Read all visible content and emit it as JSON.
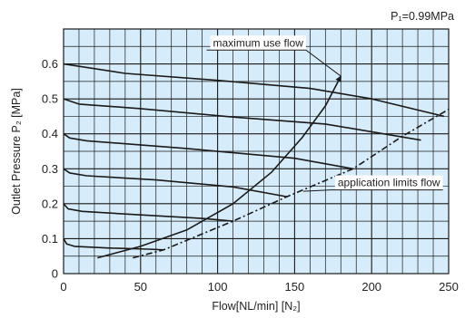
{
  "chart_data": {
    "type": "line",
    "pressure_label": "P₁=0.99MPa",
    "xlabel": "Flow[NL/min] [N₂]",
    "ylabel": "Outlet Pressure P₂ [MPa]",
    "xlim": [
      0,
      250
    ],
    "ylim": [
      0,
      0.7
    ],
    "x_ticks": [
      0,
      50,
      100,
      150,
      200,
      250
    ],
    "y_ticks": [
      0,
      0.1,
      0.2,
      0.3,
      0.4,
      0.5,
      0.6
    ],
    "x_tick_labels": [
      "0",
      "50",
      "100",
      "150",
      "200",
      "250"
    ],
    "y_tick_labels": [
      "0",
      "0.1",
      "0.2",
      "0.3",
      "0.4",
      "0.5",
      "0.6"
    ],
    "grid": true,
    "colors": {
      "plot_background": "#d6ecfa",
      "grid": "#1a1a1a",
      "lines": "#1a1a1a"
    },
    "series": [
      {
        "points": [
          [
            0,
            0.1
          ],
          [
            2,
            0.085
          ],
          [
            7,
            0.078
          ],
          [
            30,
            0.073
          ],
          [
            55,
            0.07
          ],
          [
            65,
            0.068
          ]
        ]
      },
      {
        "points": [
          [
            0,
            0.2
          ],
          [
            3,
            0.185
          ],
          [
            12,
            0.178
          ],
          [
            50,
            0.168
          ],
          [
            90,
            0.158
          ],
          [
            110,
            0.15
          ]
        ]
      },
      {
        "points": [
          [
            0,
            0.3
          ],
          [
            4,
            0.288
          ],
          [
            15,
            0.28
          ],
          [
            60,
            0.268
          ],
          [
            110,
            0.248
          ],
          [
            145,
            0.22
          ]
        ]
      },
      {
        "points": [
          [
            0,
            0.4
          ],
          [
            4,
            0.388
          ],
          [
            15,
            0.38
          ],
          [
            80,
            0.358
          ],
          [
            150,
            0.33
          ],
          [
            188,
            0.3
          ]
        ]
      },
      {
        "points": [
          [
            0,
            0.5
          ],
          [
            10,
            0.485
          ],
          [
            50,
            0.472
          ],
          [
            110,
            0.448
          ],
          [
            170,
            0.428
          ],
          [
            232,
            0.382
          ]
        ]
      },
      {
        "points": [
          [
            0,
            0.6
          ],
          [
            40,
            0.573
          ],
          [
            100,
            0.553
          ],
          [
            160,
            0.53
          ],
          [
            200,
            0.5
          ],
          [
            247,
            0.45
          ]
        ]
      }
    ],
    "annotations": [
      {
        "text": "maximum use flow",
        "style": "solid",
        "points": [
          [
            22,
            0.045
          ],
          [
            50,
            0.078
          ],
          [
            80,
            0.125
          ],
          [
            110,
            0.2
          ],
          [
            135,
            0.29
          ],
          [
            155,
            0.39
          ],
          [
            170,
            0.48
          ],
          [
            180,
            0.565
          ]
        ],
        "label_anchor": [
          97,
          0.65
        ]
      },
      {
        "text": "application limits flow",
        "style": "dash-dot",
        "points": [
          [
            45,
            0.045
          ],
          [
            65,
            0.068
          ],
          [
            110,
            0.15
          ],
          [
            145,
            0.22
          ],
          [
            188,
            0.3
          ],
          [
            220,
            0.393
          ],
          [
            250,
            0.47
          ]
        ],
        "label_anchor": [
          178,
          0.25
        ]
      }
    ]
  }
}
